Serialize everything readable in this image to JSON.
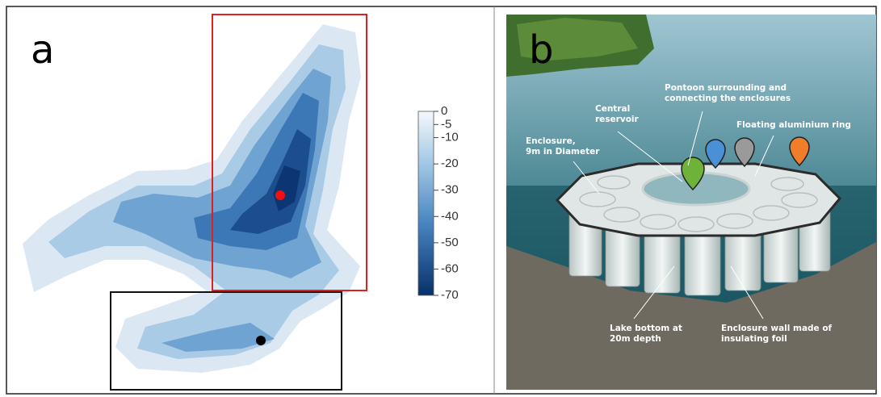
{
  "panel_a": {
    "label": "a",
    "colorbar": {
      "lim": [
        0,
        -70
      ],
      "ticks": [
        0,
        -5,
        -10,
        -20,
        -30,
        -40,
        -50,
        -60,
        -70
      ]
    }
  },
  "panel_b": {
    "label": "b",
    "annotations": [
      {
        "lines": [
          "Pontoon surrounding and",
          "connecting the enclosures"
        ]
      },
      {
        "lines": [
          "Central",
          "reservoir"
        ]
      },
      {
        "lines": [
          "Floating aluminium ring"
        ]
      },
      {
        "lines": [
          "Enclosure,",
          "9m in Diameter"
        ]
      },
      {
        "lines": [
          "Lake bottom at",
          "20m depth"
        ]
      },
      {
        "lines": [
          "Enclosure wall made of",
          "insulating foil"
        ]
      }
    ]
  }
}
